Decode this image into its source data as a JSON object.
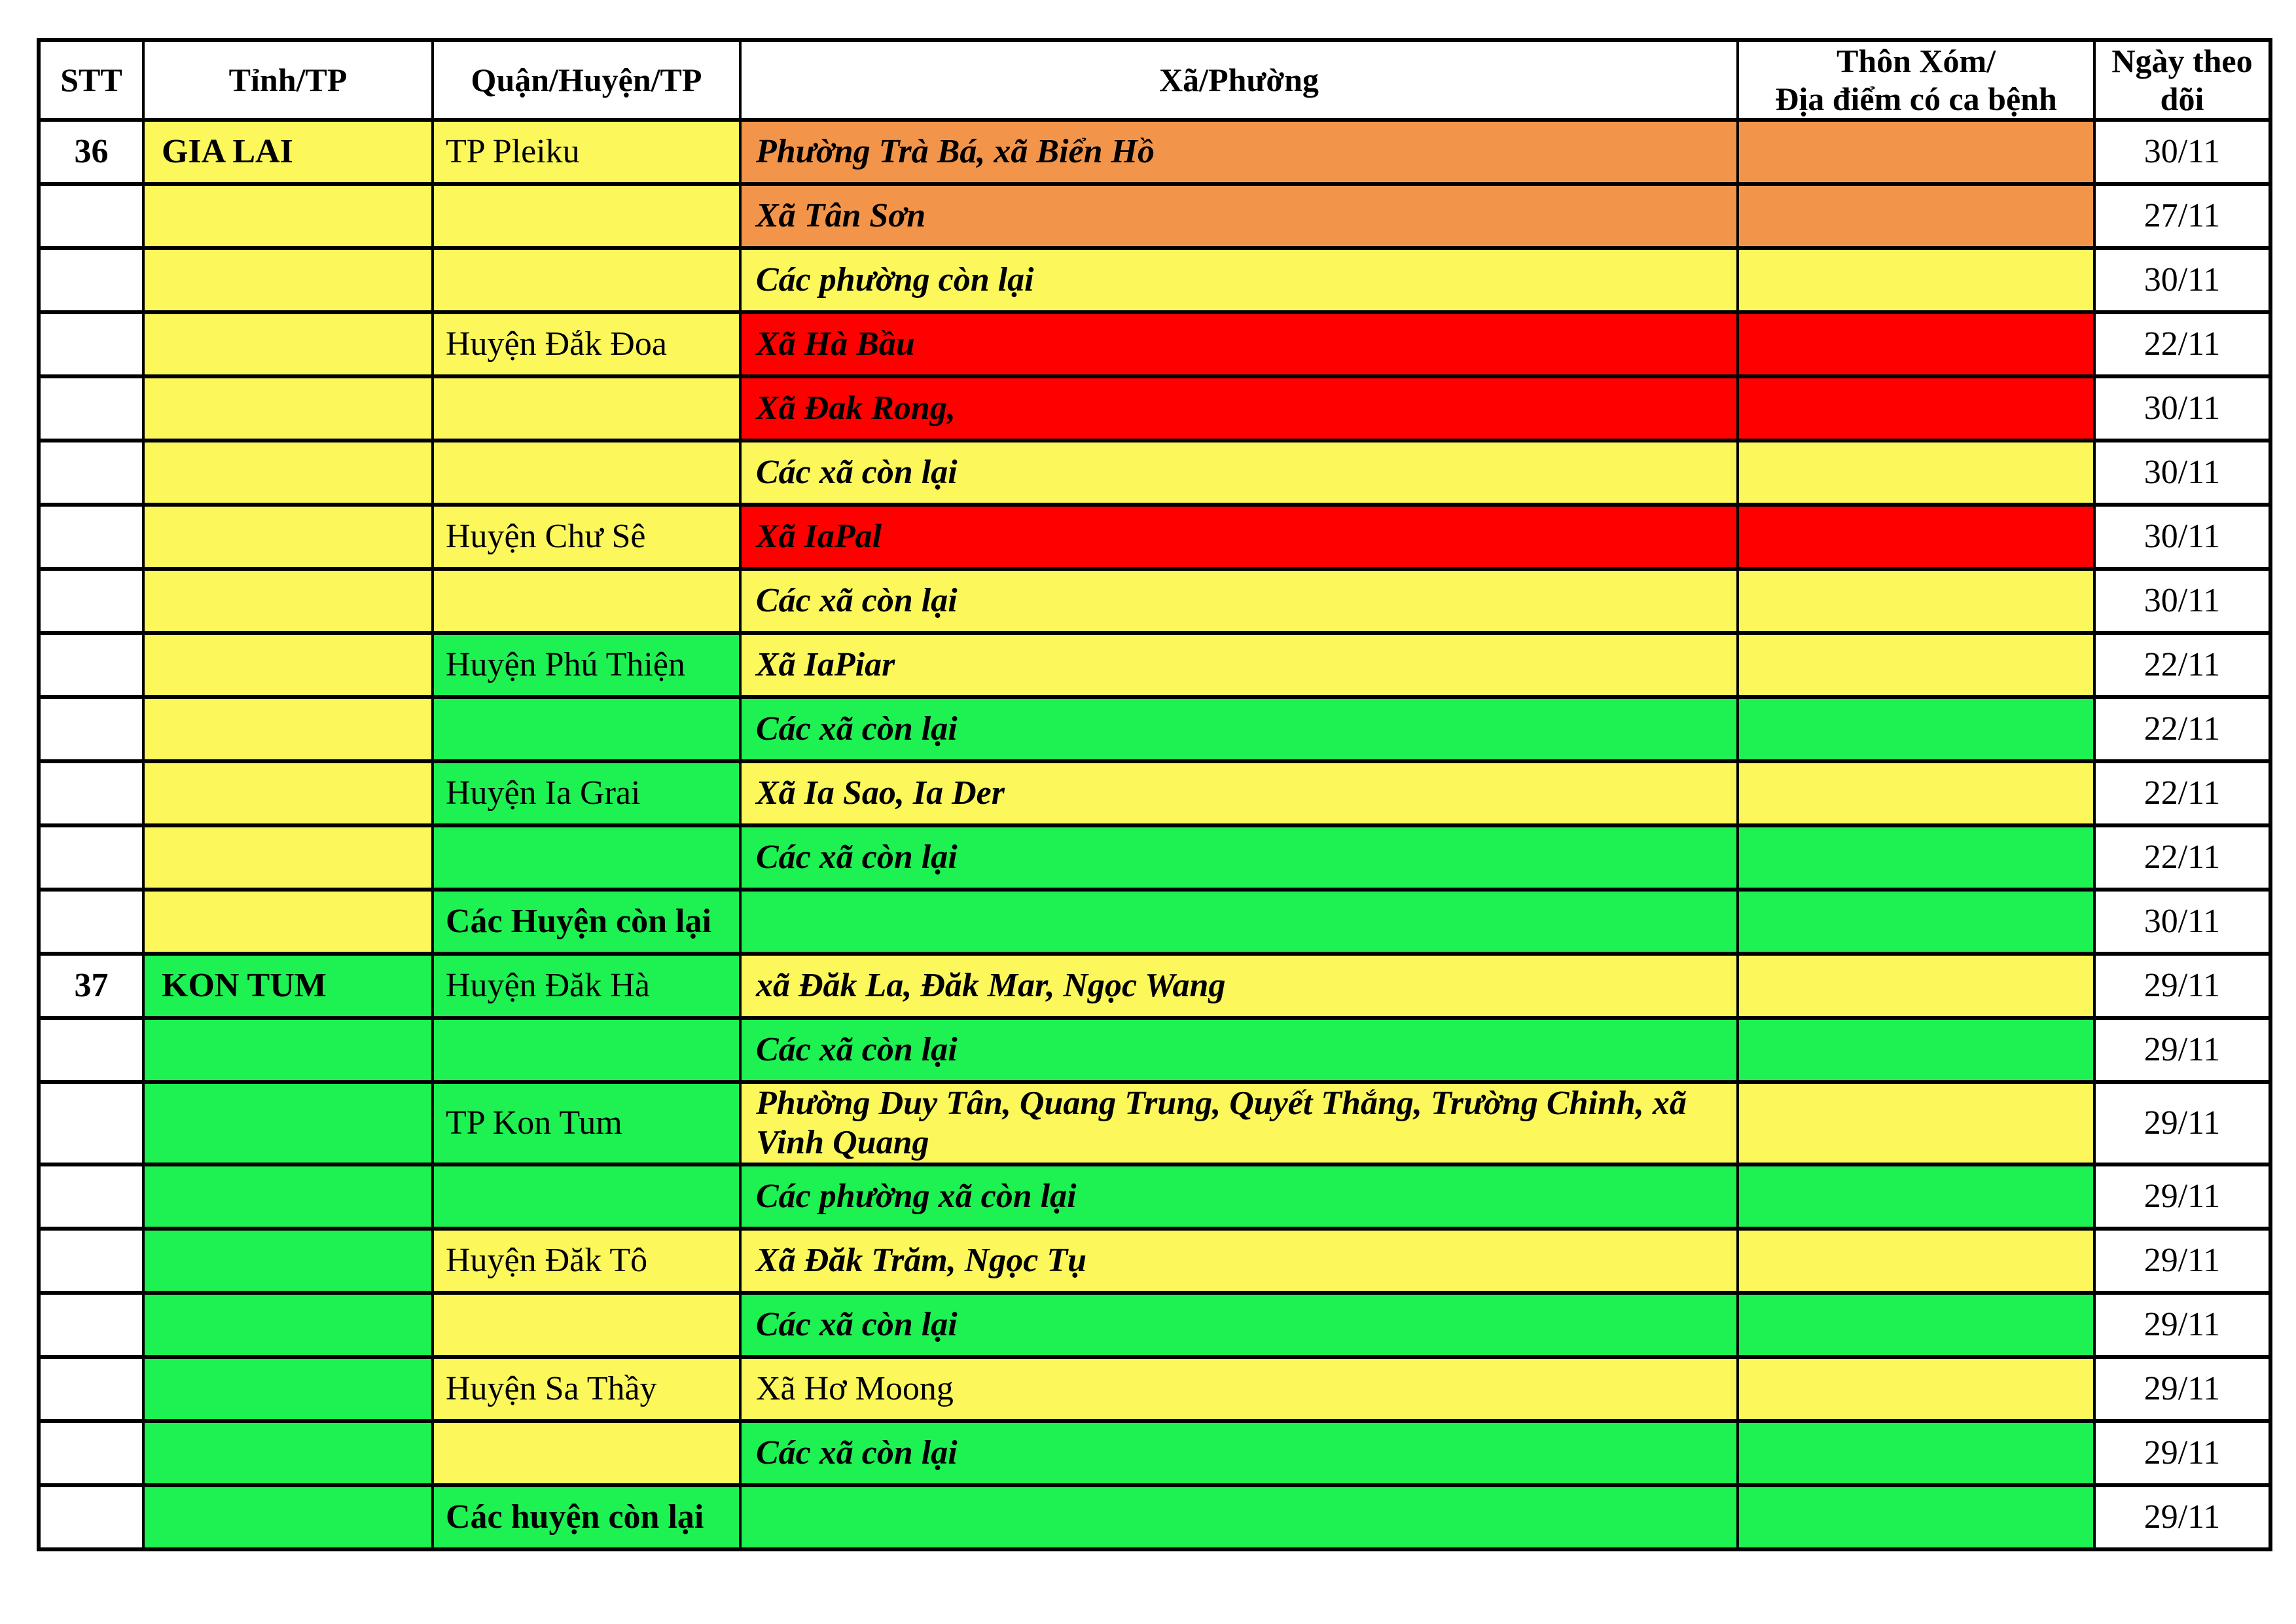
{
  "table": {
    "colors": {
      "yellow": "#FCF85C",
      "green": "#1EF152",
      "orange": "#F2954B",
      "red": "#FE0000",
      "white": "#FFFFFF",
      "border": "#000000",
      "text": "#000000"
    },
    "headers": [
      {
        "id": "stt",
        "lines": [
          "STT"
        ]
      },
      {
        "id": "tinh",
        "lines": [
          "Tỉnh/TP"
        ]
      },
      {
        "id": "quan",
        "lines": [
          "Quận/Huyện/TP"
        ]
      },
      {
        "id": "xa",
        "lines": [
          "Xã/Phường"
        ]
      },
      {
        "id": "thon",
        "lines": [
          "Thôn Xóm/",
          "Địa điểm có ca bệnh"
        ]
      },
      {
        "id": "ngay",
        "lines": [
          "Ngày theo",
          "dõi"
        ]
      }
    ],
    "rows": [
      {
        "stt": "36",
        "tinh": "GIA LAI",
        "quan": "TP Pleiku",
        "xa": "Phường Trà Bá, xã Biển Hồ",
        "thon": "",
        "ngay": "30/11",
        "stt_bg": "white",
        "tinh_bg": "yellow",
        "quan_bg": "yellow",
        "xa_bg": "orange",
        "thon_bg": "orange",
        "ngay_bg": "white",
        "quan_style": "normal",
        "xa_style": "bold-italic"
      },
      {
        "stt": "",
        "tinh": "",
        "quan": "",
        "xa": "Xã Tân Sơn",
        "thon": "",
        "ngay": "27/11",
        "stt_bg": "white",
        "tinh_bg": "yellow",
        "quan_bg": "yellow",
        "xa_bg": "orange",
        "thon_bg": "orange",
        "ngay_bg": "white",
        "quan_style": "normal",
        "xa_style": "bold-italic"
      },
      {
        "stt": "",
        "tinh": "",
        "quan": "",
        "xa": "Các phường còn lại",
        "thon": "",
        "ngay": "30/11",
        "stt_bg": "white",
        "tinh_bg": "yellow",
        "quan_bg": "yellow",
        "xa_bg": "yellow",
        "thon_bg": "yellow",
        "ngay_bg": "white",
        "quan_style": "normal",
        "xa_style": "bold-italic"
      },
      {
        "stt": "",
        "tinh": "",
        "quan": "Huyện Đắk Đoa",
        "xa": "Xã Hà Bầu",
        "thon": "",
        "ngay": "22/11",
        "stt_bg": "white",
        "tinh_bg": "yellow",
        "quan_bg": "yellow",
        "xa_bg": "red",
        "thon_bg": "red",
        "ngay_bg": "white",
        "quan_style": "normal",
        "xa_style": "bold-italic"
      },
      {
        "stt": "",
        "tinh": "",
        "quan": "",
        "xa": "Xã Đak Rong,",
        "thon": "",
        "ngay": "30/11",
        "stt_bg": "white",
        "tinh_bg": "yellow",
        "quan_bg": "yellow",
        "xa_bg": "red",
        "thon_bg": "red",
        "ngay_bg": "white",
        "quan_style": "normal",
        "xa_style": "bold-italic"
      },
      {
        "stt": "",
        "tinh": "",
        "quan": "",
        "xa": "Các xã còn lại",
        "thon": "",
        "ngay": "30/11",
        "stt_bg": "white",
        "tinh_bg": "yellow",
        "quan_bg": "yellow",
        "xa_bg": "yellow",
        "thon_bg": "yellow",
        "ngay_bg": "white",
        "quan_style": "normal",
        "xa_style": "bold-italic"
      },
      {
        "stt": "",
        "tinh": "",
        "quan": "Huyện Chư Sê",
        "xa": "Xã IaPal",
        "thon": "",
        "ngay": "30/11",
        "stt_bg": "white",
        "tinh_bg": "yellow",
        "quan_bg": "yellow",
        "xa_bg": "red",
        "thon_bg": "red",
        "ngay_bg": "white",
        "quan_style": "normal",
        "xa_style": "bold-italic"
      },
      {
        "stt": "",
        "tinh": "",
        "quan": "",
        "xa": "Các xã còn lại",
        "thon": "",
        "ngay": "30/11",
        "stt_bg": "white",
        "tinh_bg": "yellow",
        "quan_bg": "yellow",
        "xa_bg": "yellow",
        "thon_bg": "yellow",
        "ngay_bg": "white",
        "quan_style": "normal",
        "xa_style": "bold-italic"
      },
      {
        "stt": "",
        "tinh": "",
        "quan": "Huyện Phú Thiện",
        "xa": "Xã IaPiar",
        "thon": "",
        "ngay": "22/11",
        "stt_bg": "white",
        "tinh_bg": "yellow",
        "quan_bg": "green",
        "xa_bg": "yellow",
        "thon_bg": "yellow",
        "ngay_bg": "white",
        "quan_style": "normal",
        "xa_style": "bold-italic"
      },
      {
        "stt": "",
        "tinh": "",
        "quan": "",
        "xa": "Các xã còn lại",
        "thon": "",
        "ngay": "22/11",
        "stt_bg": "white",
        "tinh_bg": "yellow",
        "quan_bg": "green",
        "xa_bg": "green",
        "thon_bg": "green",
        "ngay_bg": "white",
        "quan_style": "normal",
        "xa_style": "bold-italic"
      },
      {
        "stt": "",
        "tinh": "",
        "quan": "Huyện Ia Grai",
        "xa": "Xã Ia Sao, Ia Der",
        "thon": "",
        "ngay": "22/11",
        "stt_bg": "white",
        "tinh_bg": "yellow",
        "quan_bg": "green",
        "xa_bg": "yellow",
        "thon_bg": "yellow",
        "ngay_bg": "white",
        "quan_style": "normal",
        "xa_style": "bold-italic"
      },
      {
        "stt": "",
        "tinh": "",
        "quan": "",
        "xa": "Các xã còn lại",
        "thon": "",
        "ngay": "22/11",
        "stt_bg": "white",
        "tinh_bg": "yellow",
        "quan_bg": "green",
        "xa_bg": "green",
        "thon_bg": "green",
        "ngay_bg": "white",
        "quan_style": "normal",
        "xa_style": "bold-italic"
      },
      {
        "stt": "",
        "tinh": "",
        "quan": "Các Huyện còn lại",
        "xa": "",
        "thon": "",
        "ngay": "30/11",
        "stt_bg": "white",
        "tinh_bg": "yellow",
        "quan_bg": "green",
        "xa_bg": "green",
        "thon_bg": "green",
        "ngay_bg": "white",
        "quan_style": "bold",
        "xa_style": "bold-italic"
      },
      {
        "stt": "37",
        "tinh": "KON TUM",
        "quan": "Huyện Đăk Hà",
        "xa": "xã Đăk La, Đăk Mar, Ngọc Wang",
        "thon": "",
        "ngay": "29/11",
        "stt_bg": "white",
        "tinh_bg": "green",
        "quan_bg": "green",
        "xa_bg": "yellow",
        "thon_bg": "yellow",
        "ngay_bg": "white",
        "quan_style": "normal",
        "xa_style": "bold-italic"
      },
      {
        "stt": "",
        "tinh": "",
        "quan": "",
        "xa": "Các xã còn lại",
        "thon": "",
        "ngay": "29/11",
        "stt_bg": "white",
        "tinh_bg": "green",
        "quan_bg": "green",
        "xa_bg": "green",
        "thon_bg": "green",
        "ngay_bg": "white",
        "quan_style": "normal",
        "xa_style": "bold-italic"
      },
      {
        "stt": "",
        "tinh": "",
        "quan": "TP Kon Tum",
        "xa": "Phường Duy Tân, Quang Trung, Quyết Thắng, Trường Chinh, xã Vinh Quang",
        "thon": "",
        "ngay": "29/11",
        "stt_bg": "white",
        "tinh_bg": "green",
        "quan_bg": "green",
        "xa_bg": "yellow",
        "thon_bg": "yellow",
        "ngay_bg": "white",
        "quan_style": "normal",
        "xa_style": "bold-italic"
      },
      {
        "stt": "",
        "tinh": "",
        "quan": "",
        "xa": "Các phường xã còn lại",
        "thon": "",
        "ngay": "29/11",
        "stt_bg": "white",
        "tinh_bg": "green",
        "quan_bg": "green",
        "xa_bg": "green",
        "thon_bg": "green",
        "ngay_bg": "white",
        "quan_style": "normal",
        "xa_style": "bold-italic"
      },
      {
        "stt": "",
        "tinh": "",
        "quan": "Huyện Đăk Tô",
        "xa": "Xã Đăk Trăm, Ngọc Tụ",
        "thon": "",
        "ngay": "29/11",
        "stt_bg": "white",
        "tinh_bg": "green",
        "quan_bg": "yellow",
        "xa_bg": "yellow",
        "thon_bg": "yellow",
        "ngay_bg": "white",
        "quan_style": "normal",
        "xa_style": "bold-italic"
      },
      {
        "stt": "",
        "tinh": "",
        "quan": "",
        "xa": "Các xã còn lại",
        "thon": "",
        "ngay": "29/11",
        "stt_bg": "white",
        "tinh_bg": "green",
        "quan_bg": "yellow",
        "xa_bg": "green",
        "thon_bg": "green",
        "ngay_bg": "white",
        "quan_style": "normal",
        "xa_style": "bold-italic"
      },
      {
        "stt": "",
        "tinh": "",
        "quan": "Huyện Sa Thầy",
        "xa": "Xã Hơ Moong",
        "thon": "",
        "ngay": "29/11",
        "stt_bg": "white",
        "tinh_bg": "green",
        "quan_bg": "yellow",
        "xa_bg": "yellow",
        "thon_bg": "yellow",
        "ngay_bg": "white",
        "quan_style": "normal",
        "xa_style": "plain"
      },
      {
        "stt": "",
        "tinh": "",
        "quan": "",
        "xa": "Các xã còn lại",
        "thon": "",
        "ngay": "29/11",
        "stt_bg": "white",
        "tinh_bg": "green",
        "quan_bg": "yellow",
        "xa_bg": "green",
        "thon_bg": "green",
        "ngay_bg": "white",
        "quan_style": "normal",
        "xa_style": "bold-italic"
      },
      {
        "stt": "",
        "tinh": "",
        "quan": "Các huyện còn lại",
        "xa": "",
        "thon": "",
        "ngay": "29/11",
        "stt_bg": "white",
        "tinh_bg": "green",
        "quan_bg": "green",
        "xa_bg": "green",
        "thon_bg": "green",
        "ngay_bg": "white",
        "quan_style": "bold",
        "xa_style": "bold-italic"
      }
    ]
  }
}
